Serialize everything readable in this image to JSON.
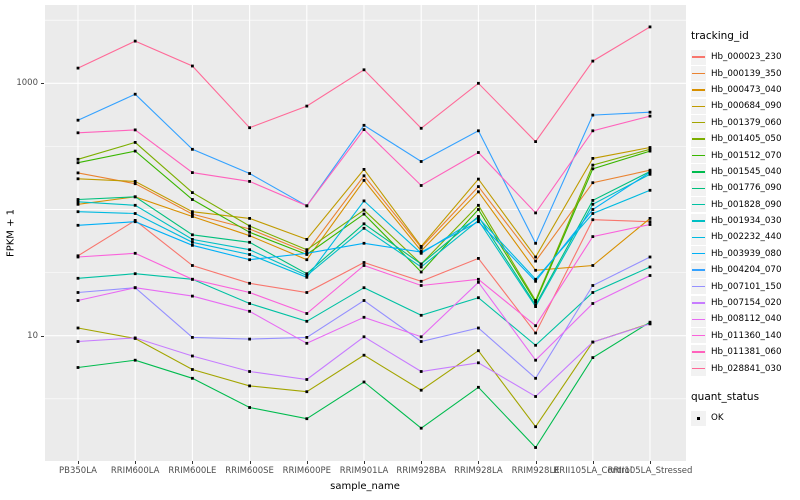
{
  "chart_data": {
    "type": "line",
    "title": "",
    "xlabel": "sample_name",
    "ylabel": "FPKM + 1",
    "y_scale": "log10",
    "ylim": [
      1,
      4200
    ],
    "grid": true,
    "panel_bg": "#EBEBEB",
    "gridline_color": "#FFFFFF",
    "point_color": "#000000",
    "tick_text_color": "#4D4D4D",
    "y_ticks": [
      {
        "label": "1000",
        "value": 1000
      },
      {
        "label": "10",
        "value": 10
      }
    ],
    "categories": [
      "PB350LA",
      "RRIM600LA",
      "RRIM600LE",
      "RRIM600SE",
      "RRIM600PE",
      "RRIM901LA",
      "RRIM928BA",
      "RRIM928LA",
      "RRIM928LE",
      "RRII105LA_Control",
      "RRII105LA_Stressed"
    ],
    "series": [
      {
        "name": "Hb_000023_230",
        "color": "#F8766D",
        "values": [
          43,
          82,
          36,
          26,
          22,
          38,
          27,
          41,
          10.5,
          83,
          80
        ]
      },
      {
        "name": "Hb_000139_350",
        "color": "#EA8331",
        "values": [
          195,
          160,
          92,
          70,
          46,
          185,
          50,
          152,
          39,
          163,
          205
        ]
      },
      {
        "name": "Hb_000473_040",
        "color": "#D89000",
        "values": [
          110,
          126,
          88,
          62,
          40,
          170,
          47,
          138,
          33,
          36,
          85
        ]
      },
      {
        "name": "Hb_000684_090",
        "color": "#C09B00",
        "values": [
          175,
          167,
          96,
          85,
          58,
          208,
          51,
          174,
          42,
          254,
          310
        ]
      },
      {
        "name": "Hb_001379_060",
        "color": "#A3A500",
        "values": [
          11.5,
          9.5,
          5.4,
          4.0,
          3.6,
          7.0,
          3.7,
          7.6,
          1.9,
          8.9,
          12.5
        ]
      },
      {
        "name": "Hb_001405_050",
        "color": "#7CAE00",
        "values": [
          250,
          340,
          136,
          74,
          48,
          99,
          37,
          108,
          19,
          225,
          300
        ]
      },
      {
        "name": "Hb_001512_070",
        "color": "#39B600",
        "values": [
          235,
          290,
          120,
          66,
          44,
          92,
          32,
          100,
          18.5,
          210,
          290
        ]
      },
      {
        "name": "Hb_001545_040",
        "color": "#00BB4E",
        "values": [
          5.6,
          6.4,
          4.6,
          2.7,
          2.2,
          4.3,
          1.85,
          3.9,
          1.3,
          6.7,
          12.8
        ]
      },
      {
        "name": "Hb_001776_090",
        "color": "#00BF7D",
        "values": [
          120,
          126,
          63,
          55,
          31,
          77,
          37,
          88,
          17.5,
          118,
          200
        ]
      },
      {
        "name": "Hb_001828_090",
        "color": "#00C1A3",
        "values": [
          28.5,
          31,
          28,
          18,
          13,
          24,
          14.5,
          20,
          8.4,
          22,
          35
        ]
      },
      {
        "name": "Hb_001934_030",
        "color": "#00BFC4",
        "values": [
          115,
          108,
          58,
          48,
          30,
          71,
          35,
          82,
          17,
          110,
          190
        ]
      },
      {
        "name": "Hb_002232_440",
        "color": "#00BAE0",
        "values": [
          96,
          93,
          55,
          44,
          29,
          117,
          45,
          86,
          28,
          93,
          142
        ]
      },
      {
        "name": "Hb_003939_080",
        "color": "#00B0F6",
        "values": [
          75,
          80,
          52,
          40,
          45,
          54,
          46,
          80,
          27,
          100,
          197
        ]
      },
      {
        "name": "Hb_004204_070",
        "color": "#35A2FF",
        "values": [
          510,
          820,
          300,
          193,
          107,
          465,
          240,
          420,
          54,
          560,
          590
        ]
      },
      {
        "name": "Hb_007101_150",
        "color": "#9590FF",
        "values": [
          22,
          24,
          9.7,
          9.4,
          9.7,
          19,
          9.0,
          11.5,
          4.6,
          25,
          42
        ]
      },
      {
        "name": "Hb_007154_020",
        "color": "#C77CFF",
        "values": [
          9.0,
          9.6,
          6.9,
          5.2,
          4.5,
          9.8,
          5.2,
          6.1,
          3.3,
          8.9,
          12.4
        ]
      },
      {
        "name": "Hb_008112_040",
        "color": "#E76BF3",
        "values": [
          19,
          24,
          20.6,
          15.6,
          8.7,
          14,
          9.8,
          26.5,
          6.4,
          18,
          30
        ]
      },
      {
        "name": "Hb_011360_140",
        "color": "#FA62DB",
        "values": [
          42,
          45,
          28,
          22,
          15,
          36,
          25,
          28,
          12,
          61,
          76
        ]
      },
      {
        "name": "Hb_011381_060",
        "color": "#FF62BC",
        "values": [
          405,
          427,
          196,
          167,
          107,
          430,
          155,
          283,
          94,
          420,
          550
        ]
      },
      {
        "name": "Hb_028841_030",
        "color": "#FF6A98",
        "values": [
          1320,
          2160,
          1370,
          445,
          660,
          1280,
          440,
          1000,
          345,
          1500,
          2800
        ]
      }
    ],
    "legend": {
      "color_title": "tracking_id",
      "shape_title": "quant_status",
      "shape_items": [
        {
          "label": "OK"
        }
      ]
    }
  }
}
